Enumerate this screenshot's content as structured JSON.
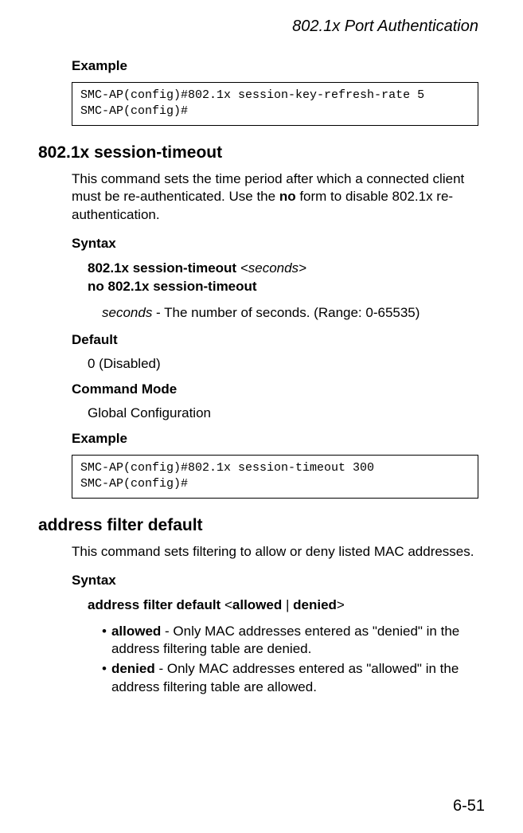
{
  "header": {
    "title": "802.1x Port Authentication"
  },
  "sections": {
    "example1": {
      "label": "Example",
      "code": "SMC-AP(config)#802.1x session-key-refresh-rate 5\nSMC-AP(config)#"
    },
    "sessionTimeout": {
      "heading": "802.1x session-timeout",
      "intro_part1": "This command sets the time period after which a connected client must be re-authenticated. Use the ",
      "intro_bold": "no",
      "intro_part2": " form to disable 802.1x re-authentication.",
      "syntaxLabel": "Syntax",
      "syntaxCmd": "802.1x session-timeout",
      "syntaxArg": "<seconds>",
      "syntaxNo": "no 802.1x session-timeout",
      "paramItalic": "seconds",
      "paramRest": " - The number of seconds. (Range: 0-65535)",
      "defaultLabel": "Default",
      "defaultValue": "0 (Disabled)",
      "commandModeLabel": "Command Mode",
      "commandModeValue": "Global Configuration",
      "exampleLabel": "Example",
      "exampleCode": "SMC-AP(config)#802.1x session-timeout 300\nSMC-AP(config)#"
    },
    "addressFilter": {
      "heading": "address filter default",
      "intro": "This command sets filtering to allow or deny listed MAC addresses.",
      "syntaxLabel": "Syntax",
      "syntaxCmdLead": "address filter default",
      "syntaxAngle1": "<",
      "syntaxOpt1": "allowed",
      "syntaxPipe": " | ",
      "syntaxOpt2": "denied",
      "syntaxAngle2": ">",
      "bullets": [
        {
          "bold": "allowed",
          "rest": " - Only MAC addresses entered as \"denied\" in the address filtering table are denied."
        },
        {
          "bold": "denied",
          "rest": " - Only MAC addresses entered as \"allowed\" in the address filtering table are allowed."
        }
      ]
    }
  },
  "pageNumber": "6-51"
}
